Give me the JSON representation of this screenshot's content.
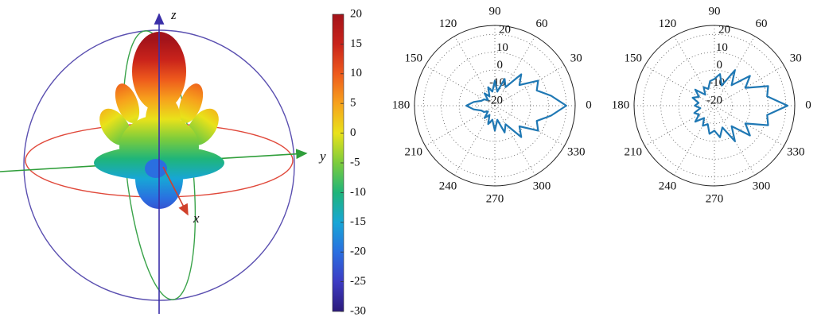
{
  "chart_data": [
    {
      "type": "pattern3d",
      "axis_labels": {
        "z": "z",
        "y": "y",
        "x": "x"
      },
      "colormap": [
        "#2b1a7a",
        "#3d3bc4",
        "#2a6fe0",
        "#17a6d6",
        "#1fb57a",
        "#7ccc3c",
        "#e9e21a",
        "#f7a21c",
        "#ee5a1c",
        "#c9231b",
        "#a3131a"
      ],
      "clim": [
        -30,
        20
      ],
      "cticks": [
        20,
        15,
        10,
        5,
        0,
        -5,
        -10,
        -15,
        -20,
        -25,
        -30
      ]
    },
    {
      "type": "polar",
      "color": "#1f78b4",
      "theta": [
        0,
        10,
        20,
        30,
        40,
        50,
        60,
        70,
        80,
        90,
        100,
        110,
        120,
        130,
        140,
        150,
        160,
        170,
        180,
        190,
        200,
        210,
        220,
        230,
        240,
        250,
        260,
        270,
        280,
        290,
        300,
        310,
        320,
        330,
        340,
        350
      ],
      "values": [
        20,
        12,
        5,
        8,
        -2,
        3,
        -8,
        -4,
        -12,
        -6,
        -12,
        -9,
        -14,
        -11,
        -15,
        -13,
        -12,
        -8,
        -4,
        -8,
        -12,
        -13,
        -15,
        -11,
        -14,
        -9,
        -12,
        -6,
        -12,
        -4,
        -8,
        3,
        -2,
        8,
        5,
        12
      ],
      "rlim": [
        -20,
        25
      ],
      "rticks": [
        -20,
        -10,
        0,
        10,
        20
      ],
      "thetaticks": [
        0,
        30,
        60,
        90,
        120,
        150,
        180,
        210,
        240,
        270,
        300,
        330
      ],
      "grid": true
    },
    {
      "type": "polar",
      "color": "#1f78b4",
      "theta": [
        0,
        10,
        20,
        30,
        40,
        50,
        60,
        70,
        80,
        90,
        100,
        110,
        120,
        130,
        140,
        150,
        160,
        170,
        180,
        190,
        200,
        210,
        220,
        230,
        240,
        250,
        260,
        270,
        280,
        290,
        300,
        310,
        320,
        330,
        340,
        350
      ],
      "values": [
        21,
        10,
        12,
        0,
        6,
        -5,
        3,
        -8,
        -2,
        -5,
        -6,
        -10,
        -8,
        -12,
        -6,
        -10,
        -7,
        -11,
        -9,
        -12,
        -8,
        -10,
        -6,
        -11,
        -7,
        -9,
        -4,
        -6,
        -2,
        -7,
        3,
        -5,
        6,
        0,
        12,
        10
      ],
      "rlim": [
        -20,
        25
      ],
      "rticks": [
        -20,
        -10,
        0,
        10,
        20
      ],
      "thetaticks": [
        0,
        30,
        60,
        90,
        120,
        150,
        180,
        210,
        240,
        270,
        300,
        330
      ],
      "grid": true
    }
  ]
}
